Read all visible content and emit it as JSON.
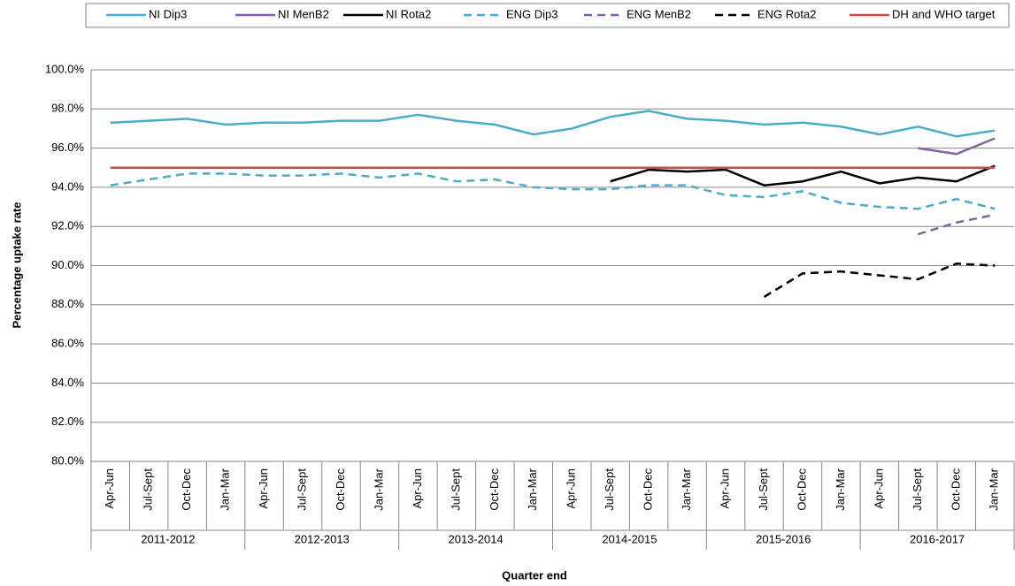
{
  "chart_data": {
    "type": "line",
    "x_label": "Quarter end",
    "y_label": "Percentage uptake rate",
    "categories": [
      "Apr-Jun",
      "Jul-Sept",
      "Oct-Dec",
      "Jan-Mar",
      "Apr-Jun",
      "Jul-Sept",
      "Oct-Dec",
      "Jan-Mar",
      "Apr-Jun",
      "Jul-Sept",
      "Oct-Dec",
      "Jan-Mar",
      "Apr-Jun",
      "Jul-Sept",
      "Oct-Dec",
      "Jan-Mar",
      "Apr-Jun",
      "Jul-Sept",
      "Oct-Dec",
      "Jan-Mar",
      "Apr-Jun",
      "Jul-Sept",
      "Oct-Dec",
      "Jan-Mar"
    ],
    "category_groups": [
      "2011-2012",
      "2012-2013",
      "2013-2014",
      "2014-2015",
      "2015-2016",
      "2016-2017"
    ],
    "ylim": [
      80,
      100
    ],
    "yticks": [
      {
        "value": 80,
        "label": "80.0%"
      },
      {
        "value": 82,
        "label": "82.0%"
      },
      {
        "value": 84,
        "label": "84.0%"
      },
      {
        "value": 86,
        "label": "86.0%"
      },
      {
        "value": 88,
        "label": "88.0%"
      },
      {
        "value": 90,
        "label": "90.0%"
      },
      {
        "value": 92,
        "label": "92.0%"
      },
      {
        "value": 94,
        "label": "94.0%"
      },
      {
        "value": 96,
        "label": "96.0%"
      },
      {
        "value": 98,
        "label": "98.0%"
      },
      {
        "value": 100,
        "label": "100.0%"
      }
    ],
    "grid": true,
    "legend": "top",
    "series": [
      {
        "name": "NI Dip3",
        "color": "#4bacc6",
        "dash": false,
        "values": [
          97.3,
          97.4,
          97.5,
          97.2,
          97.3,
          97.3,
          97.4,
          97.4,
          97.7,
          97.4,
          97.2,
          96.7,
          97.0,
          97.6,
          97.9,
          97.5,
          97.4,
          97.2,
          97.3,
          97.1,
          96.7,
          97.1,
          96.6,
          96.9
        ]
      },
      {
        "name": "NI MenB2",
        "color": "#8064a2",
        "dash": false,
        "values": [
          null,
          null,
          null,
          null,
          null,
          null,
          null,
          null,
          null,
          null,
          null,
          null,
          null,
          null,
          null,
          null,
          null,
          null,
          null,
          null,
          null,
          96.0,
          95.7,
          96.5
        ]
      },
      {
        "name": "NI Rota2",
        "color": "#000000",
        "dash": false,
        "values": [
          null,
          null,
          null,
          null,
          null,
          null,
          null,
          null,
          null,
          null,
          null,
          null,
          null,
          94.3,
          94.9,
          94.8,
          94.9,
          94.1,
          94.3,
          94.8,
          94.2,
          94.5,
          94.3,
          95.1
        ]
      },
      {
        "name": "ENG Dip3",
        "color": "#4bacc6",
        "dash": true,
        "values": [
          94.1,
          94.4,
          94.7,
          94.7,
          94.6,
          94.6,
          94.7,
          94.5,
          94.7,
          94.3,
          94.4,
          94.0,
          93.9,
          93.9,
          94.1,
          94.1,
          93.6,
          93.5,
          93.8,
          93.2,
          93.0,
          92.9,
          93.4,
          92.9
        ]
      },
      {
        "name": "ENG MenB2",
        "color": "#8064a2",
        "dash": true,
        "values": [
          null,
          null,
          null,
          null,
          null,
          null,
          null,
          null,
          null,
          null,
          null,
          null,
          null,
          null,
          null,
          null,
          null,
          null,
          null,
          null,
          null,
          91.6,
          92.2,
          92.6
        ]
      },
      {
        "name": "ENG Rota2",
        "color": "#000000",
        "dash": true,
        "values": [
          null,
          null,
          null,
          null,
          null,
          null,
          null,
          null,
          null,
          null,
          null,
          null,
          null,
          null,
          null,
          null,
          null,
          88.4,
          89.6,
          89.7,
          89.5,
          89.3,
          90.1,
          90.0
        ]
      },
      {
        "name": "DH and WHO target",
        "color": "#c0504d",
        "dash": false,
        "values": [
          95,
          95,
          95,
          95,
          95,
          95,
          95,
          95,
          95,
          95,
          95,
          95,
          95,
          95,
          95,
          95,
          95,
          95,
          95,
          95,
          95,
          95,
          95,
          95
        ]
      }
    ]
  }
}
